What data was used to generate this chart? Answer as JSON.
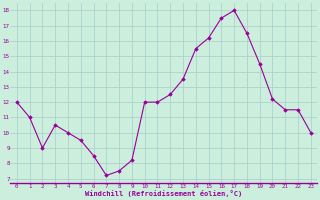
{
  "x": [
    0,
    1,
    2,
    3,
    4,
    5,
    6,
    7,
    8,
    9,
    10,
    11,
    12,
    13,
    14,
    15,
    16,
    17,
    18,
    19,
    20,
    21,
    22,
    23
  ],
  "y": [
    12,
    11,
    9,
    10.5,
    10,
    9.5,
    8.5,
    7.2,
    7.5,
    8.2,
    12,
    12,
    12.5,
    13.5,
    15.5,
    16.2,
    17.5,
    18,
    16.5,
    14.5,
    12.2,
    11.5,
    11.5,
    10
  ],
  "line_color": "#990099",
  "marker_color": "#990099",
  "bg_color": "#cceedd",
  "grid_color": "#aacccc",
  "xlabel": "Windchill (Refroidissement éolien,°C)",
  "xlabel_color": "#990099",
  "tick_color": "#990099",
  "ylim_min": 7,
  "ylim_max": 18,
  "xlim_min": 0,
  "xlim_max": 23,
  "yticks": [
    7,
    8,
    9,
    10,
    11,
    12,
    13,
    14,
    15,
    16,
    17,
    18
  ],
  "xticks": [
    0,
    1,
    2,
    3,
    4,
    5,
    6,
    7,
    8,
    9,
    10,
    11,
    12,
    13,
    14,
    15,
    16,
    17,
    18,
    19,
    20,
    21,
    22,
    23
  ],
  "figsize": [
    3.2,
    2.0
  ],
  "dpi": 100
}
